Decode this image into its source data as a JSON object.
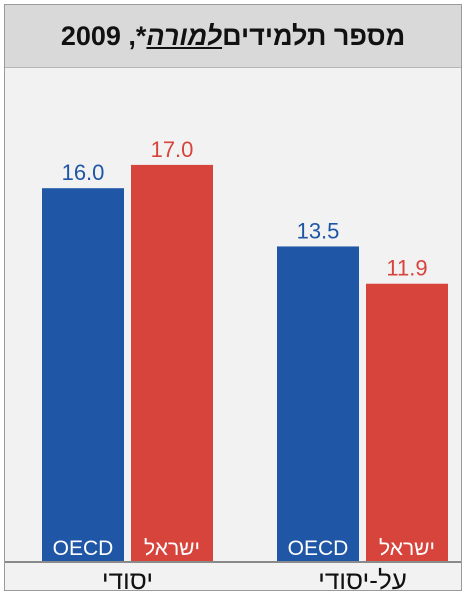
{
  "title": {
    "prefix": "מספר תלמידים",
    "underlined": "למורה",
    "suffix": "*, 2009"
  },
  "chart_data": {
    "type": "bar",
    "title": "מספר תלמידים למורה*, 2009",
    "categories": [
      "יסודי",
      "על-יסודי"
    ],
    "series": [
      {
        "name": "OECD",
        "values": [
          16.0,
          13.5
        ],
        "labels": [
          "16.0",
          "13.5"
        ],
        "color": "#1f56a5"
      },
      {
        "name": "ישראל",
        "values": [
          17.0,
          11.9
        ],
        "labels": [
          "17.0",
          "11.9"
        ],
        "color": "#d7443c"
      }
    ],
    "ylim": [
      0,
      20
    ],
    "grid": false,
    "legend": "series names inside bars at base"
  }
}
